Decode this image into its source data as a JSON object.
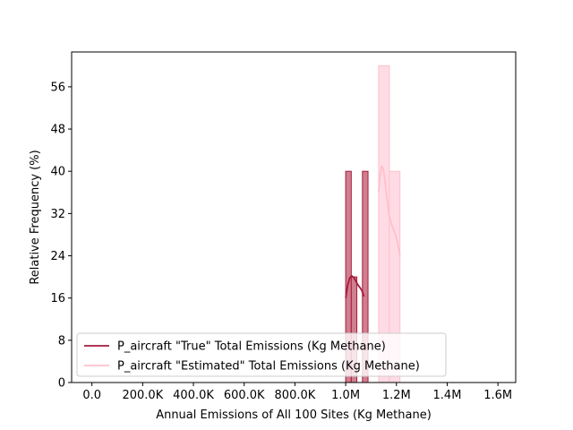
{
  "chart_data": {
    "type": "histogram",
    "title": "",
    "xlabel": "Annual Emissions of All 100 Sites (Kg Methane)",
    "ylabel": "Relative Frequency (%)",
    "xlim": [
      -80000,
      1670000
    ],
    "ylim": [
      0,
      62.6
    ],
    "x_ticks": [
      {
        "value": 0,
        "label": "0.0"
      },
      {
        "value": 200000,
        "label": "200.0K"
      },
      {
        "value": 400000,
        "label": "400.0K"
      },
      {
        "value": 600000,
        "label": "600.0K"
      },
      {
        "value": 800000,
        "label": "800.0K"
      },
      {
        "value": 1000000,
        "label": "1.0M"
      },
      {
        "value": 1200000,
        "label": "1.2M"
      },
      {
        "value": 1400000,
        "label": "1.4M"
      },
      {
        "value": 1600000,
        "label": "1.6M"
      }
    ],
    "y_ticks": [
      {
        "value": 0,
        "label": "0"
      },
      {
        "value": 8,
        "label": "8"
      },
      {
        "value": 16,
        "label": "16"
      },
      {
        "value": 24,
        "label": "24"
      },
      {
        "value": 32,
        "label": "32"
      },
      {
        "value": 40,
        "label": "40"
      },
      {
        "value": 48,
        "label": "48"
      },
      {
        "value": 56,
        "label": "56"
      }
    ],
    "legend_position": "lower-left",
    "series": [
      {
        "name": "P_aircraft \"True\" Total Emissions (Kg Methane)",
        "color": "#a51c3c",
        "fill_color": "#cf7f8f",
        "bins": [
          {
            "x0": 1000000,
            "x1": 1022000,
            "value": 40
          },
          {
            "x0": 1022000,
            "x1": 1044000,
            "value": 20
          },
          {
            "x0": 1044000,
            "x1": 1066000,
            "value": 0
          },
          {
            "x0": 1066000,
            "x1": 1088000,
            "value": 40
          }
        ],
        "kde": {
          "x": [
            1000000,
            1008000,
            1016000,
            1024000,
            1032000,
            1040000,
            1048000,
            1056000,
            1064000,
            1072000
          ],
          "y": [
            16.0,
            18.4,
            19.8,
            20.2,
            19.9,
            19.2,
            18.5,
            18.0,
            17.4,
            16.3
          ]
        }
      },
      {
        "name": "P_aircraft \"Estimated\" Total Emissions (Kg Methane)",
        "color": "#ffc0cb",
        "fill_color": "#ffdbe6",
        "bins": [
          {
            "x0": 1130000,
            "x1": 1172000,
            "value": 60
          },
          {
            "x0": 1172000,
            "x1": 1214000,
            "value": 40
          }
        ],
        "kde": {
          "x": [
            1130000,
            1136000,
            1142000,
            1148000,
            1154000,
            1160000,
            1166000,
            1172000,
            1178000,
            1184000,
            1190000,
            1196000,
            1202000,
            1208000,
            1214000
          ],
          "y": [
            36.0,
            39.5,
            41.0,
            40.5,
            38.5,
            36.0,
            33.5,
            31.5,
            30.5,
            29.5,
            28.8,
            28.0,
            27.0,
            25.5,
            24.0
          ]
        }
      }
    ]
  }
}
